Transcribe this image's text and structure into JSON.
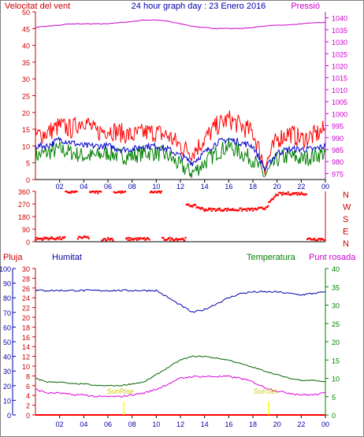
{
  "header": {
    "wind_label": "Velocitat del vent",
    "title": "24 hour graph day : 23 Enero 2016",
    "pressure_label": "Pressió"
  },
  "legend_bottom": {
    "rain": "Pluja",
    "humidity": "Humitat",
    "temperature": "Temperatura",
    "dewpoint": "Punt rosada"
  },
  "annotations": {
    "sunrise": "SunRise",
    "sunset": "SunSet"
  },
  "colors": {
    "wind_gust": "#ff0000",
    "wind_avg": "#0000cc",
    "wind_low": "#008000",
    "pressure": "#cc00cc",
    "direction": "#ff0000",
    "humidity": "#0000aa",
    "temperature": "#006400",
    "dewpoint": "#dd00dd",
    "rain": "#ff0000",
    "sun": "#ffff00",
    "text_red": "#cc0000",
    "text_blue": "#0000aa",
    "text_green": "#008000",
    "text_magenta": "#cc00cc"
  },
  "chart_data": [
    {
      "type": "line",
      "name": "wind-pressure",
      "x_ticks": [
        "02",
        "04",
        "06",
        "08",
        "10",
        "12",
        "14",
        "16",
        "18",
        "20",
        "22",
        "00"
      ],
      "y_left_ticks": [
        0,
        5,
        10,
        15,
        20,
        25,
        30,
        35,
        40,
        45,
        50
      ],
      "y_left_range": [
        0,
        50
      ],
      "y_right_ticks": [
        975,
        980,
        985,
        990,
        995,
        1000,
        1005,
        1010,
        1015,
        1020,
        1025,
        1030,
        1035,
        1040
      ],
      "y_right_range": [
        972.5,
        1042.5
      ],
      "hours": [
        0,
        1,
        2,
        3,
        4,
        5,
        6,
        7,
        8,
        9,
        10,
        11,
        12,
        13,
        14,
        15,
        16,
        17,
        18,
        19,
        20,
        21,
        22,
        23,
        24
      ],
      "series": [
        {
          "key": "gust",
          "values": [
            13,
            14,
            16,
            15,
            18,
            14,
            15,
            14,
            13,
            14,
            14,
            13,
            10,
            8,
            12,
            16,
            18,
            16,
            14,
            4,
            12,
            14,
            12,
            13,
            15
          ]
        },
        {
          "key": "avg",
          "values": [
            10,
            10,
            12,
            11,
            10,
            10,
            10,
            9,
            9,
            10,
            10,
            9,
            7,
            5,
            8,
            11,
            12,
            11,
            10,
            3,
            8,
            9,
            9,
            9,
            10
          ]
        },
        {
          "key": "low",
          "values": [
            7,
            8,
            9,
            8,
            7,
            7,
            8,
            7,
            7,
            8,
            8,
            7,
            4,
            2,
            5,
            8,
            10,
            8,
            6,
            1,
            6,
            7,
            6,
            7,
            8
          ]
        },
        {
          "key": "pressure",
          "values": [
            1036,
            1036.5,
            1037,
            1037.5,
            1037.5,
            1037.5,
            1037.5,
            1038,
            1038.5,
            1039,
            1039,
            1038.5,
            1037.5,
            1036.5,
            1036,
            1035.5,
            1035.5,
            1035.5,
            1036,
            1036.5,
            1037,
            1037,
            1037.5,
            1038,
            1038
          ]
        }
      ]
    },
    {
      "type": "scatter",
      "name": "wind-direction",
      "y_ticks": [
        0,
        90,
        180,
        270,
        360
      ],
      "y_range": [
        0,
        360
      ],
      "compass": [
        "N",
        "W",
        "S",
        "E",
        "N"
      ],
      "hours": [
        0,
        1,
        2,
        3,
        4,
        5,
        6,
        7,
        8,
        9,
        10,
        11,
        12,
        13,
        14,
        15,
        16,
        17,
        18,
        19,
        20,
        21,
        22,
        23,
        24
      ],
      "series": [
        {
          "key": "direction",
          "values": [
            20,
            25,
            25,
            355,
            30,
            355,
            20,
            355,
            20,
            20,
            355,
            20,
            20,
            260,
            230,
            230,
            230,
            230,
            230,
            240,
            340,
            345,
            345,
            20,
            20
          ]
        }
      ]
    },
    {
      "type": "line",
      "name": "humidity-temp-rain",
      "x_ticks": [
        "02",
        "04",
        "06",
        "08",
        "10",
        "12",
        "14",
        "16",
        "18",
        "20",
        "22",
        "00"
      ],
      "y_left_ticks": [
        0,
        10,
        20,
        30,
        40,
        50,
        60,
        70,
        80,
        90,
        100
      ],
      "y_left_range": [
        0,
        100
      ],
      "y_mid_ticks": [
        0,
        2,
        4,
        6,
        8,
        10,
        12,
        14,
        16,
        18,
        20,
        22,
        24,
        26,
        28,
        30
      ],
      "y_mid_range": [
        0,
        30
      ],
      "y_right_ticks": [
        0,
        5,
        10,
        15,
        20,
        25,
        30,
        35,
        40
      ],
      "y_right_range": [
        0,
        40
      ],
      "hours": [
        0,
        1,
        2,
        3,
        4,
        5,
        6,
        7,
        8,
        9,
        10,
        11,
        12,
        13,
        14,
        15,
        16,
        17,
        18,
        19,
        20,
        21,
        22,
        23,
        24
      ],
      "series": [
        {
          "key": "humidity",
          "values": [
            85,
            85,
            85,
            85,
            85,
            85,
            85,
            85,
            85,
            85,
            85,
            80,
            75,
            70,
            72,
            76,
            80,
            83,
            84,
            84,
            84,
            83,
            82,
            83,
            84
          ]
        },
        {
          "key": "temperature",
          "values": [
            10,
            9,
            9,
            8.5,
            8.5,
            8,
            8,
            8,
            8.5,
            9,
            11,
            13,
            15,
            16,
            16,
            15.5,
            15,
            14,
            13,
            12,
            11,
            10,
            9.5,
            9.5,
            9
          ]
        },
        {
          "key": "dewpoint",
          "values": [
            7,
            6,
            6,
            5.5,
            5.5,
            5,
            5,
            5,
            5.5,
            6,
            7,
            8.5,
            10,
            10.5,
            10.5,
            10.5,
            10.5,
            10,
            9,
            7.5,
            6.5,
            6,
            5.5,
            5.5,
            6
          ]
        },
        {
          "key": "rain",
          "values": [
            0,
            0,
            0,
            0,
            0,
            0,
            0,
            0,
            0,
            0,
            0,
            0,
            0,
            0,
            0,
            0,
            0,
            0,
            0,
            0,
            0,
            0,
            0,
            0,
            0
          ]
        }
      ]
    }
  ]
}
